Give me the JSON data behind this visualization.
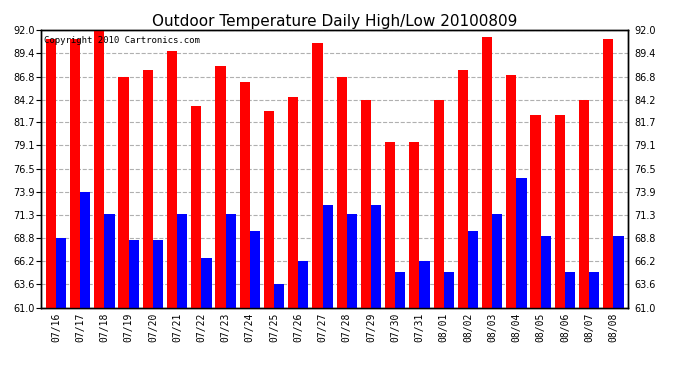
{
  "title": "Outdoor Temperature Daily High/Low 20100809",
  "copyright": "Copyright 2010 Cartronics.com",
  "dates": [
    "07/16",
    "07/17",
    "07/18",
    "07/19",
    "07/20",
    "07/21",
    "07/22",
    "07/23",
    "07/24",
    "07/25",
    "07/26",
    "07/27",
    "07/28",
    "07/29",
    "07/30",
    "07/31",
    "08/01",
    "08/02",
    "08/03",
    "08/04",
    "08/05",
    "08/06",
    "08/07",
    "08/08"
  ],
  "highs": [
    91.0,
    91.0,
    92.0,
    86.8,
    87.5,
    89.6,
    83.5,
    88.0,
    86.2,
    83.0,
    84.5,
    90.5,
    86.8,
    84.2,
    79.5,
    79.5,
    84.2,
    87.5,
    91.2,
    87.0,
    82.5,
    82.5,
    84.2,
    91.0
  ],
  "lows": [
    68.8,
    73.9,
    71.5,
    68.5,
    68.5,
    71.5,
    66.5,
    71.5,
    69.5,
    63.6,
    66.2,
    72.5,
    71.5,
    72.5,
    65.0,
    66.2,
    65.0,
    69.5,
    71.5,
    75.5,
    69.0,
    65.0,
    65.0,
    69.0
  ],
  "high_color": "#ff0000",
  "low_color": "#0000ff",
  "bg_color": "#ffffff",
  "grid_color": "#b0b0b0",
  "ymin": 61.0,
  "ymax": 92.0,
  "yticks": [
    61.0,
    63.6,
    66.2,
    68.8,
    71.3,
    73.9,
    76.5,
    79.1,
    81.7,
    84.2,
    86.8,
    89.4,
    92.0
  ],
  "title_fontsize": 11,
  "copyright_fontsize": 6.5,
  "tick_fontsize": 7,
  "bar_width": 0.42
}
